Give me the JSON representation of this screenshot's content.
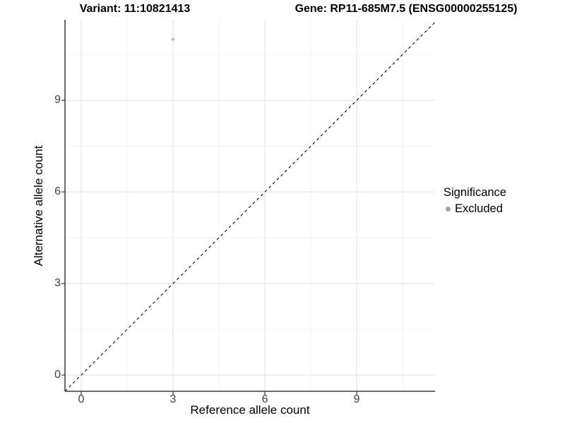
{
  "titles": {
    "variant": "Variant: 11:10821413",
    "gene": "Gene: RP11-685M7.5 (ENSG00000255125)"
  },
  "chart_data": {
    "type": "scatter",
    "title": "",
    "xlabel": "Reference allele count",
    "ylabel": "Alternative allele count",
    "xlim": [
      -0.53,
      11.56
    ],
    "ylim": [
      -0.53,
      11.64
    ],
    "x_ticks": [
      0,
      3,
      6,
      9
    ],
    "y_ticks": [
      0,
      3,
      6,
      9
    ],
    "x_minor_ticks": [
      1.5,
      4.5,
      7.5,
      10.5
    ],
    "y_minor_ticks": [
      1.5,
      4.5,
      7.5,
      10.5
    ],
    "grid": "on",
    "points": [
      {
        "x": 3,
        "y": 11,
        "series": "Excluded"
      }
    ],
    "reference_line": {
      "equation": "y = x",
      "style": "dashed",
      "color": "#000000"
    },
    "legend": {
      "title": "Significance",
      "position": "right",
      "entries": [
        {
          "label": "Excluded",
          "color": "#a3a3a3"
        }
      ]
    },
    "colors": {
      "point": "#c2c2c2",
      "grid_major": "#e4e4e4",
      "grid_minor": "#f1f1f1",
      "axis_line": "#3d3d3d",
      "tick_mark": "#333333",
      "tick_text": "#404040"
    }
  }
}
